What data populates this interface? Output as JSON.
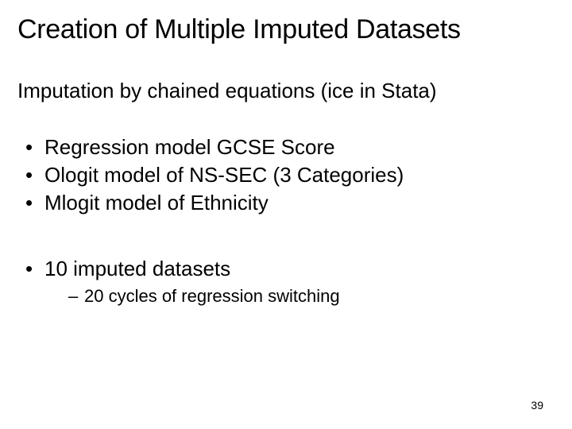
{
  "slide": {
    "title": "Creation of Multiple Imputed Datasets",
    "subtitle": "Imputation by chained equations (ice in Stata)",
    "bullets_group_1": [
      "Regression model GCSE Score",
      "Ologit model of NS-SEC (3 Categories)",
      "Mlogit model of Ethnicity"
    ],
    "bullets_group_2": {
      "main": "10 imputed datasets",
      "sub": "20 cycles of regression switching"
    },
    "page_number": "39"
  },
  "styling": {
    "background_color": "#ffffff",
    "text_color": "#000000",
    "title_fontsize": 34,
    "subtitle_fontsize": 26,
    "bullet_fontsize": 26,
    "sub_bullet_fontsize": 22,
    "page_number_fontsize": 14,
    "font_family": "Arial"
  }
}
